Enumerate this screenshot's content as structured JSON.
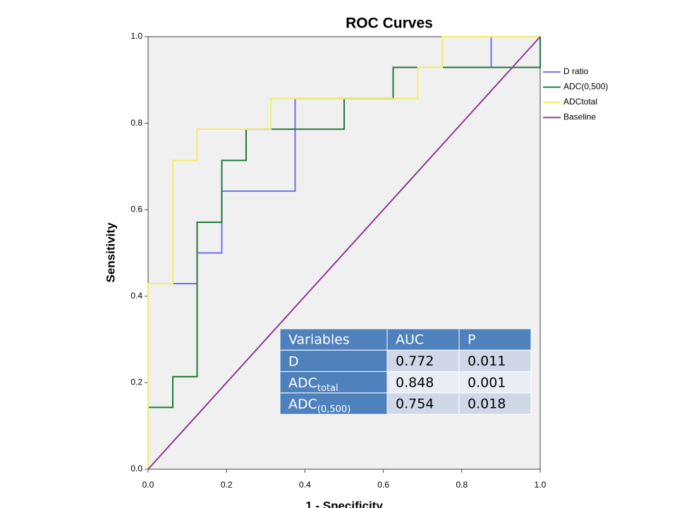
{
  "chart_data": {
    "type": "line",
    "title": "ROC Curves",
    "x_label": "1 - Specificity",
    "y_label": "Sensitivity",
    "xlim": [
      0,
      1
    ],
    "ylim": [
      0,
      1
    ],
    "xticks": [
      {
        "value": 0,
        "label": "0.0"
      },
      {
        "value": 0.2,
        "label": "0.2"
      },
      {
        "value": 0.4,
        "label": "0.4"
      },
      {
        "value": 0.6,
        "label": "0.6"
      },
      {
        "value": 0.8,
        "label": "0.8"
      },
      {
        "value": 1,
        "label": "1.0"
      }
    ],
    "yticks": [
      {
        "value": 0,
        "label": "0.0"
      },
      {
        "value": 0.2,
        "label": "0.2"
      },
      {
        "value": 0.4,
        "label": "0.4"
      },
      {
        "value": 0.6,
        "label": "0.6"
      },
      {
        "value": 0.8,
        "label": "0.8"
      },
      {
        "value": 1,
        "label": "1.0"
      }
    ],
    "series": [
      {
        "name": "D ratio",
        "color": "#6b6ff0",
        "x": [
          0,
          0,
          0.125,
          0.125,
          0.188,
          0.188,
          0.375,
          0.375,
          0.625,
          0.625,
          0.875,
          0.875,
          1
        ],
        "values": [
          0,
          0.429,
          0.429,
          0.5,
          0.5,
          0.643,
          0.643,
          0.857,
          0.857,
          0.929,
          0.929,
          1,
          1
        ]
      },
      {
        "name": "ADC(0,500)",
        "color": "#1f7a3a",
        "x": [
          0,
          0,
          0.063,
          0.063,
          0.125,
          0.125,
          0.188,
          0.188,
          0.25,
          0.25,
          0.5,
          0.5,
          0.625,
          0.625,
          1,
          1
        ],
        "values": [
          0,
          0.143,
          0.143,
          0.214,
          0.214,
          0.571,
          0.571,
          0.714,
          0.714,
          0.786,
          0.786,
          0.857,
          0.857,
          0.929,
          0.929,
          1
        ]
      },
      {
        "name": "ADCtotal",
        "color": "#f2ee6a",
        "x": [
          0,
          0,
          0.063,
          0.063,
          0.125,
          0.125,
          0.313,
          0.313,
          0.688,
          0.688,
          0.75,
          0.75,
          1
        ],
        "values": [
          0,
          0.429,
          0.429,
          0.714,
          0.714,
          0.786,
          0.786,
          0.857,
          0.857,
          0.929,
          0.929,
          1,
          1
        ]
      },
      {
        "name": "Baseline",
        "color": "#8e3b8e",
        "x": [
          0,
          1
        ],
        "values": [
          0,
          1
        ]
      }
    ],
    "table": {
      "columns": [
        "Variables",
        "AUC",
        "P"
      ],
      "rows": [
        {
          "name": "D",
          "auc": 0.772,
          "p": 0.011
        },
        {
          "name": "ADC",
          "sub": "total",
          "auc": 0.848,
          "p": 0.001
        },
        {
          "name": "ADC",
          "sub": "(0,500)",
          "auc": 0.754,
          "p": 0.018
        }
      ]
    }
  }
}
